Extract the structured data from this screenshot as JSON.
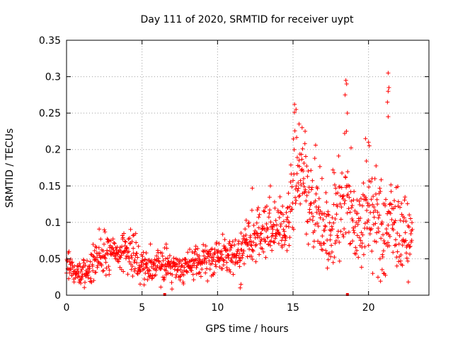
{
  "chart_data": {
    "type": "scatter",
    "title": "Day 111 of 2020, SRMTID for receiver uypt",
    "xlabel": "GPS time / hours",
    "ylabel": "SRMTID / TECUs",
    "xlim": [
      0,
      24
    ],
    "ylim": [
      0,
      0.35
    ],
    "x_ticks": [
      0,
      5,
      10,
      15,
      20
    ],
    "x_tick_labels": [
      "0",
      "5",
      "10",
      "15",
      "20"
    ],
    "y_ticks": [
      0,
      0.05,
      0.1,
      0.15,
      0.2,
      0.25,
      0.3,
      0.35
    ],
    "y_tick_labels": [
      "0",
      "0.05",
      "0.1",
      "0.15",
      "0.2",
      "0.25",
      "0.3",
      "0.35"
    ],
    "grid": true,
    "marker": "plus",
    "color": "#ff0000",
    "trend": [
      [
        0.0,
        0.05,
        0.012
      ],
      [
        0.5,
        0.03,
        0.008
      ],
      [
        1.0,
        0.028,
        0.008
      ],
      [
        1.5,
        0.032,
        0.01
      ],
      [
        2.0,
        0.055,
        0.015
      ],
      [
        2.5,
        0.06,
        0.015
      ],
      [
        3.0,
        0.055,
        0.012
      ],
      [
        3.5,
        0.058,
        0.012
      ],
      [
        4.0,
        0.062,
        0.014
      ],
      [
        4.5,
        0.055,
        0.015
      ],
      [
        5.0,
        0.04,
        0.012
      ],
      [
        5.5,
        0.042,
        0.012
      ],
      [
        6.0,
        0.045,
        0.012
      ],
      [
        6.5,
        0.04,
        0.012
      ],
      [
        7.0,
        0.038,
        0.01
      ],
      [
        7.5,
        0.038,
        0.01
      ],
      [
        8.0,
        0.04,
        0.01
      ],
      [
        8.5,
        0.042,
        0.011
      ],
      [
        9.0,
        0.045,
        0.012
      ],
      [
        9.5,
        0.048,
        0.012
      ],
      [
        10.0,
        0.052,
        0.012
      ],
      [
        10.5,
        0.055,
        0.012
      ],
      [
        11.0,
        0.055,
        0.012
      ],
      [
        11.5,
        0.062,
        0.014
      ],
      [
        12.0,
        0.072,
        0.015
      ],
      [
        12.5,
        0.082,
        0.017
      ],
      [
        13.0,
        0.088,
        0.018
      ],
      [
        13.5,
        0.092,
        0.018
      ],
      [
        14.0,
        0.09,
        0.018
      ],
      [
        14.5,
        0.095,
        0.02
      ],
      [
        15.0,
        0.15,
        0.035
      ],
      [
        15.5,
        0.17,
        0.035
      ],
      [
        16.0,
        0.15,
        0.035
      ],
      [
        16.5,
        0.125,
        0.03
      ],
      [
        17.0,
        0.105,
        0.03
      ],
      [
        17.5,
        0.09,
        0.03
      ],
      [
        18.0,
        0.12,
        0.035
      ],
      [
        18.5,
        0.14,
        0.04
      ],
      [
        19.0,
        0.11,
        0.035
      ],
      [
        19.5,
        0.095,
        0.03
      ],
      [
        20.0,
        0.12,
        0.035
      ],
      [
        20.5,
        0.1,
        0.035
      ],
      [
        21.0,
        0.085,
        0.03
      ],
      [
        21.5,
        0.1,
        0.035
      ],
      [
        22.0,
        0.09,
        0.03
      ],
      [
        22.5,
        0.08,
        0.025
      ],
      [
        22.8,
        0.075,
        0.02
      ]
    ],
    "outliers": [
      [
        18.5,
        0.295
      ],
      [
        18.55,
        0.29
      ],
      [
        18.45,
        0.275
      ],
      [
        18.6,
        0.25
      ],
      [
        21.3,
        0.305
      ],
      [
        21.35,
        0.285
      ],
      [
        21.3,
        0.28
      ],
      [
        21.25,
        0.265
      ],
      [
        21.3,
        0.245
      ],
      [
        15.1,
        0.262
      ],
      [
        15.2,
        0.255
      ],
      [
        15.4,
        0.235
      ],
      [
        15.6,
        0.23
      ],
      [
        15.8,
        0.225
      ],
      [
        20.0,
        0.21
      ],
      [
        20.05,
        0.205
      ],
      [
        19.8,
        0.215
      ],
      [
        21.0,
        0.03
      ],
      [
        20.9,
        0.035
      ],
      [
        11.5,
        0.01
      ],
      [
        11.55,
        0.015
      ],
      [
        6.5,
        0.065
      ],
      [
        6.6,
        0.07
      ],
      [
        13.5,
        0.15
      ],
      [
        12.3,
        0.147
      ]
    ],
    "zero_markers": [
      6.5,
      18.6
    ],
    "start_hour": 0.0,
    "end_hour": 22.9,
    "sample_interval_hours": 0.02
  }
}
